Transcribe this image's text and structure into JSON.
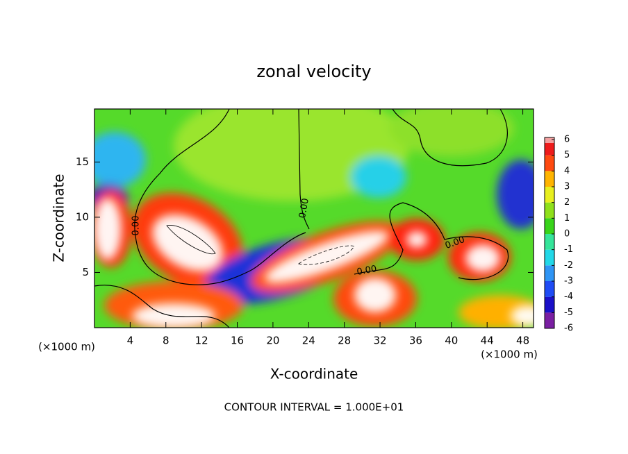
{
  "chart_data": {
    "type": "contour",
    "title": "zonal velocity",
    "x_label": "X-coordinate",
    "y_label": "Z-coordinate",
    "x_unit": "(×1000 m)",
    "xlim": [
      0,
      49.2
    ],
    "xticks": [
      4,
      8,
      12,
      16,
      20,
      24,
      28,
      32,
      36,
      40,
      44,
      48
    ],
    "ylim": [
      0,
      19.8
    ],
    "yticks": [
      5,
      10,
      15
    ],
    "colorbar": {
      "ticks": [
        -6,
        -5,
        -4,
        -3,
        -2,
        -1,
        0,
        1,
        2,
        3,
        4,
        5,
        6
      ],
      "colors": [
        "#7a1fa2",
        "#1a10c8",
        "#1f4cf5",
        "#2f95f5",
        "#22d8e8",
        "#35e59a",
        "#38d41a",
        "#8fe01b",
        "#e8ef1f",
        "#ffb400",
        "#ff4a10",
        "#ee1b1b"
      ]
    },
    "contour_labels": [
      "0.00",
      "0.00",
      "0.00",
      "0.00"
    ],
    "footer": "CONTOUR INTERVAL = 1.000E+01"
  }
}
